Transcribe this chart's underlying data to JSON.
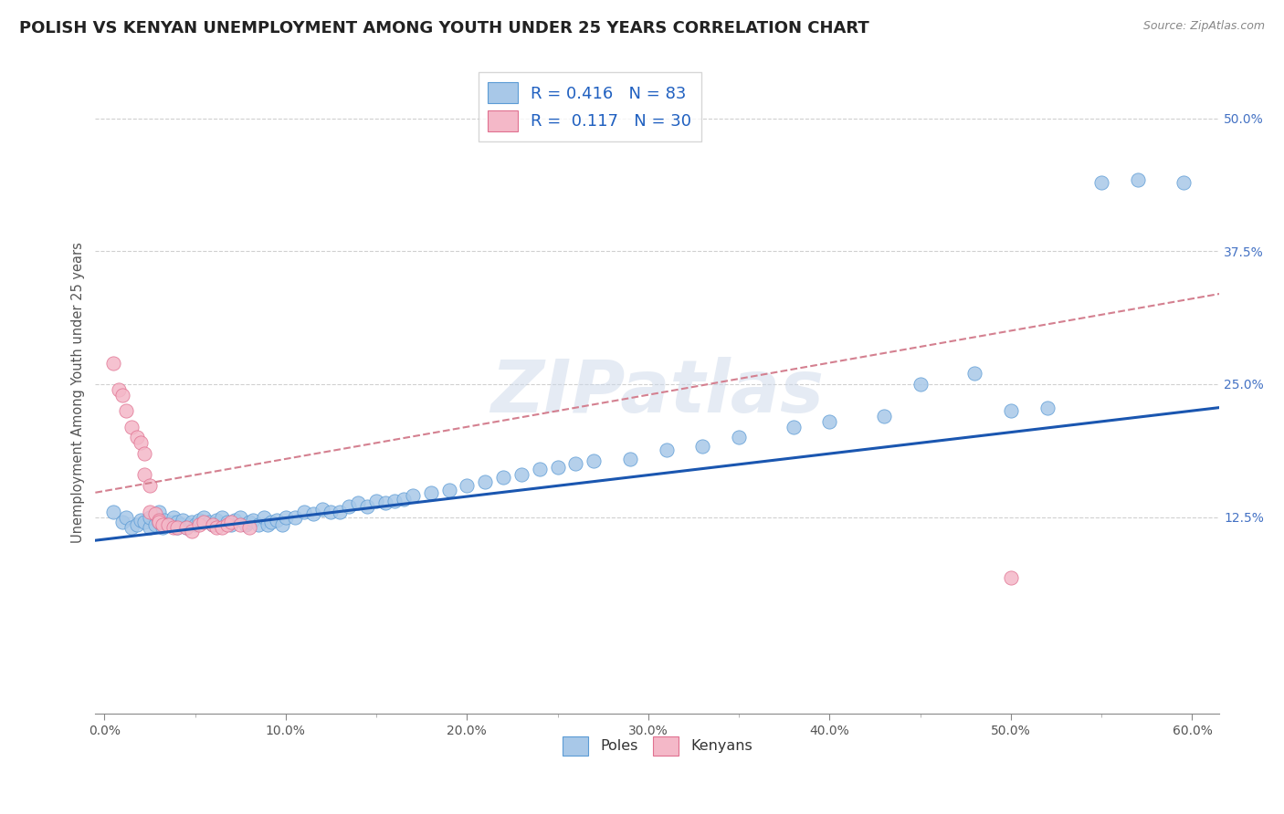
{
  "title": "POLISH VS KENYAN UNEMPLOYMENT AMONG YOUTH UNDER 25 YEARS CORRELATION CHART",
  "source": "Source: ZipAtlas.com",
  "ylabel_label": "Unemployment Among Youth under 25 years",
  "xlim": [
    -0.005,
    0.615
  ],
  "ylim": [
    -0.06,
    0.545
  ],
  "xticks": [
    0.0,
    0.1,
    0.2,
    0.3,
    0.4,
    0.5,
    0.6
  ],
  "yticks": [
    0.125,
    0.25,
    0.375,
    0.5
  ],
  "poles_color": "#a8c8e8",
  "kenyans_color": "#f4b8c8",
  "poles_edge": "#5b9bd5",
  "kenyans_edge": "#e07090",
  "trend_poles_color": "#1a56b0",
  "trend_kenyans_color": "#d48090",
  "trend_poles_start_y": 0.103,
  "trend_poles_end_y": 0.228,
  "trend_kenyans_start_y": 0.148,
  "trend_kenyans_end_y": 0.335,
  "R_poles": 0.416,
  "N_poles": 83,
  "R_kenyans": 0.117,
  "N_kenyans": 30,
  "legend_label_poles": "Poles",
  "legend_label_kenyans": "Kenyans",
  "watermark": "ZIPatlas",
  "background_color": "#ffffff",
  "grid_color": "#d0d0d0",
  "poles_x": [
    0.005,
    0.01,
    0.012,
    0.015,
    0.018,
    0.02,
    0.022,
    0.025,
    0.025,
    0.028,
    0.03,
    0.03,
    0.032,
    0.033,
    0.035,
    0.038,
    0.038,
    0.04,
    0.04,
    0.042,
    0.043,
    0.045,
    0.047,
    0.048,
    0.05,
    0.052,
    0.055,
    0.058,
    0.06,
    0.062,
    0.065,
    0.068,
    0.07,
    0.072,
    0.075,
    0.078,
    0.08,
    0.082,
    0.085,
    0.088,
    0.09,
    0.092,
    0.095,
    0.098,
    0.1,
    0.105,
    0.11,
    0.115,
    0.12,
    0.125,
    0.13,
    0.135,
    0.14,
    0.145,
    0.15,
    0.155,
    0.16,
    0.165,
    0.17,
    0.18,
    0.19,
    0.2,
    0.21,
    0.22,
    0.23,
    0.24,
    0.25,
    0.26,
    0.27,
    0.29,
    0.31,
    0.33,
    0.35,
    0.38,
    0.4,
    0.43,
    0.45,
    0.48,
    0.5,
    0.52,
    0.55,
    0.57,
    0.595
  ],
  "poles_y": [
    0.13,
    0.12,
    0.125,
    0.115,
    0.118,
    0.122,
    0.12,
    0.115,
    0.125,
    0.118,
    0.12,
    0.13,
    0.115,
    0.122,
    0.118,
    0.12,
    0.125,
    0.115,
    0.12,
    0.118,
    0.122,
    0.115,
    0.118,
    0.12,
    0.118,
    0.122,
    0.125,
    0.12,
    0.118,
    0.122,
    0.125,
    0.12,
    0.118,
    0.122,
    0.125,
    0.118,
    0.12,
    0.122,
    0.118,
    0.125,
    0.118,
    0.12,
    0.122,
    0.118,
    0.125,
    0.125,
    0.13,
    0.128,
    0.132,
    0.13,
    0.13,
    0.135,
    0.138,
    0.135,
    0.14,
    0.138,
    0.14,
    0.142,
    0.145,
    0.148,
    0.15,
    0.155,
    0.158,
    0.162,
    0.165,
    0.17,
    0.172,
    0.175,
    0.178,
    0.18,
    0.188,
    0.192,
    0.2,
    0.21,
    0.215,
    0.22,
    0.25,
    0.26,
    0.225,
    0.228,
    0.44,
    0.442,
    0.44
  ],
  "kenyans_x": [
    0.005,
    0.008,
    0.01,
    0.012,
    0.015,
    0.018,
    0.02,
    0.022,
    0.022,
    0.025,
    0.025,
    0.028,
    0.03,
    0.03,
    0.032,
    0.035,
    0.038,
    0.04,
    0.045,
    0.048,
    0.052,
    0.055,
    0.06,
    0.062,
    0.065,
    0.068,
    0.07,
    0.075,
    0.08,
    0.5
  ],
  "kenyans_y": [
    0.27,
    0.245,
    0.24,
    0.225,
    0.21,
    0.2,
    0.195,
    0.185,
    0.165,
    0.155,
    0.13,
    0.128,
    0.122,
    0.12,
    0.118,
    0.118,
    0.115,
    0.115,
    0.115,
    0.112,
    0.118,
    0.12,
    0.118,
    0.115,
    0.115,
    0.118,
    0.12,
    0.118,
    0.115,
    0.068
  ]
}
